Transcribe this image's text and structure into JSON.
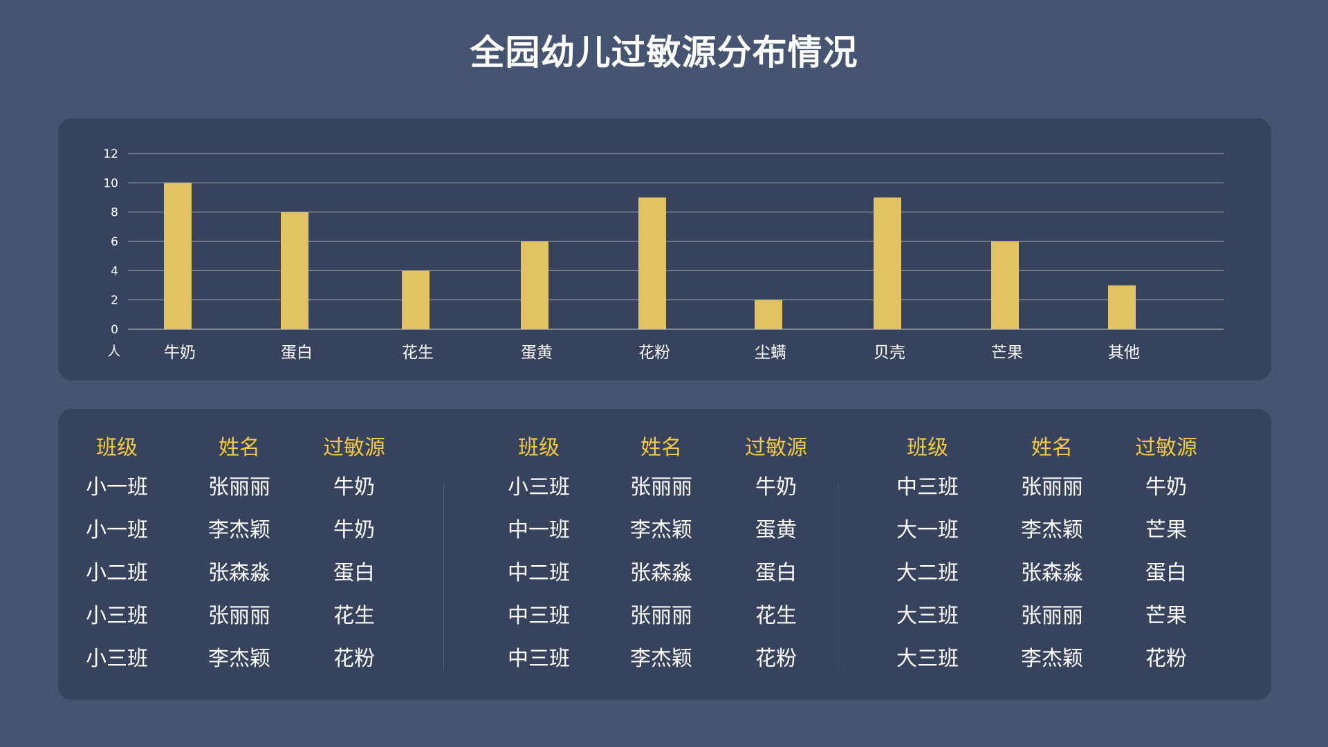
{
  "title": "全园幼儿过敏源分布情况",
  "colors": {
    "background": "#455470",
    "panel": "#37435c",
    "bar": "#e2c363",
    "header_text": "#f3c842",
    "grid": "#c8ccd4"
  },
  "chart_data": {
    "type": "bar",
    "title": "",
    "xlabel": "",
    "ylabel": "人",
    "categories": [
      "牛奶",
      "蛋白",
      "花生",
      "蛋黄",
      "花粉",
      "尘螨",
      "贝壳",
      "芒果",
      "其他"
    ],
    "values": [
      10,
      8,
      4,
      6,
      9,
      2,
      9,
      6,
      3
    ],
    "ylim": [
      0,
      12
    ],
    "yticks": [
      "0",
      "2",
      "4",
      "6",
      "8",
      "10",
      "12"
    ],
    "grid": true,
    "legend": "none"
  },
  "table": {
    "groups": [
      {
        "headers": [
          "班级",
          "姓名",
          "过敏源"
        ],
        "rows": [
          [
            "小一班",
            "张丽丽",
            "牛奶"
          ],
          [
            "小一班",
            "李杰颖",
            "牛奶"
          ],
          [
            "小二班",
            "张森淼",
            "蛋白"
          ],
          [
            "小三班",
            "张丽丽",
            "花生"
          ],
          [
            "小三班",
            "李杰颖",
            "花粉"
          ]
        ]
      },
      {
        "headers": [
          "班级",
          "姓名",
          "过敏源"
        ],
        "rows": [
          [
            "小三班",
            "张丽丽",
            "牛奶"
          ],
          [
            "中一班",
            "李杰颖",
            "蛋黄"
          ],
          [
            "中二班",
            "张森淼",
            "蛋白"
          ],
          [
            "中三班",
            "张丽丽",
            "花生"
          ],
          [
            "中三班",
            "李杰颖",
            "花粉"
          ]
        ]
      },
      {
        "headers": [
          "班级",
          "姓名",
          "过敏源"
        ],
        "rows": [
          [
            "中三班",
            "张丽丽",
            "牛奶"
          ],
          [
            "大一班",
            "李杰颖",
            "芒果"
          ],
          [
            "大二班",
            "张森淼",
            "蛋白"
          ],
          [
            "大三班",
            "张丽丽",
            "芒果"
          ],
          [
            "大三班",
            "李杰颖",
            "花粉"
          ]
        ]
      }
    ]
  }
}
